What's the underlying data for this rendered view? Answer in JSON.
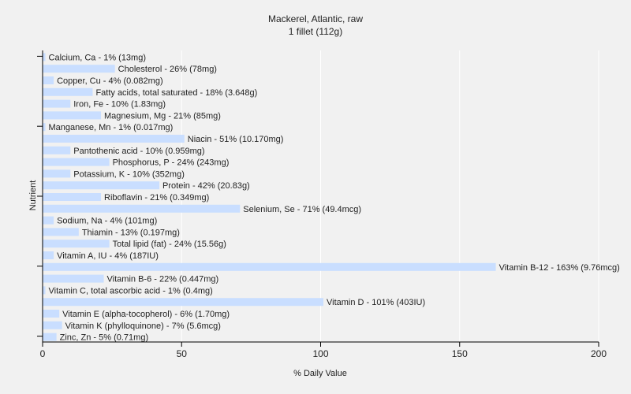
{
  "chart_data": {
    "type": "bar",
    "orientation": "horizontal",
    "title": "Mackerel, Atlantic, raw",
    "subtitle": "1 fillet (112g)",
    "xlabel": "% Daily Value",
    "ylabel": "Nutrient",
    "xlim": [
      0,
      200
    ],
    "xticks": [
      0,
      50,
      100,
      150,
      200
    ],
    "bar_color": "#c9deff",
    "grid": true,
    "categories": [
      "Calcium, Ca",
      "Cholesterol",
      "Copper, Cu",
      "Fatty acids, total saturated",
      "Iron, Fe",
      "Magnesium, Mg",
      "Manganese, Mn",
      "Niacin",
      "Pantothenic acid",
      "Phosphorus, P",
      "Potassium, K",
      "Protein",
      "Riboflavin",
      "Selenium, Se",
      "Sodium, Na",
      "Thiamin",
      "Total lipid (fat)",
      "Vitamin A, IU",
      "Vitamin B-12",
      "Vitamin B-6",
      "Vitamin C, total ascorbic acid",
      "Vitamin D",
      "Vitamin E (alpha-tocopherol)",
      "Vitamin K (phylloquinone)",
      "Zinc, Zn"
    ],
    "values": [
      1,
      26,
      4,
      18,
      10,
      21,
      1,
      51,
      10,
      24,
      10,
      42,
      21,
      71,
      4,
      13,
      24,
      4,
      163,
      22,
      1,
      101,
      6,
      7,
      5
    ],
    "labels": [
      "Calcium, Ca - 1% (13mg)",
      "Cholesterol - 26% (78mg)",
      "Copper, Cu - 4% (0.082mg)",
      "Fatty acids, total saturated - 18% (3.648g)",
      "Iron, Fe - 10% (1.83mg)",
      "Magnesium, Mg - 21% (85mg)",
      "Manganese, Mn - 1% (0.017mg)",
      "Niacin - 51% (10.170mg)",
      "Pantothenic acid - 10% (0.959mg)",
      "Phosphorus, P - 24% (243mg)",
      "Potassium, K - 10% (352mg)",
      "Protein - 42% (20.83g)",
      "Riboflavin - 21% (0.349mg)",
      "Selenium, Se - 71% (49.4mcg)",
      "Sodium, Na - 4% (101mg)",
      "Thiamin - 13% (0.197mg)",
      "Total lipid (fat) - 24% (15.56g)",
      "Vitamin A, IU - 4% (187IU)",
      "Vitamin B-12 - 163% (9.76mcg)",
      "Vitamin B-6 - 22% (0.447mg)",
      "Vitamin C, total ascorbic acid - 1% (0.4mg)",
      "Vitamin D - 101% (403IU)",
      "Vitamin E (alpha-tocopherol) - 6% (1.70mg)",
      "Vitamin K (phylloquinone) - 7% (5.6mcg)",
      "Zinc, Zn - 5% (0.71mg)"
    ]
  }
}
